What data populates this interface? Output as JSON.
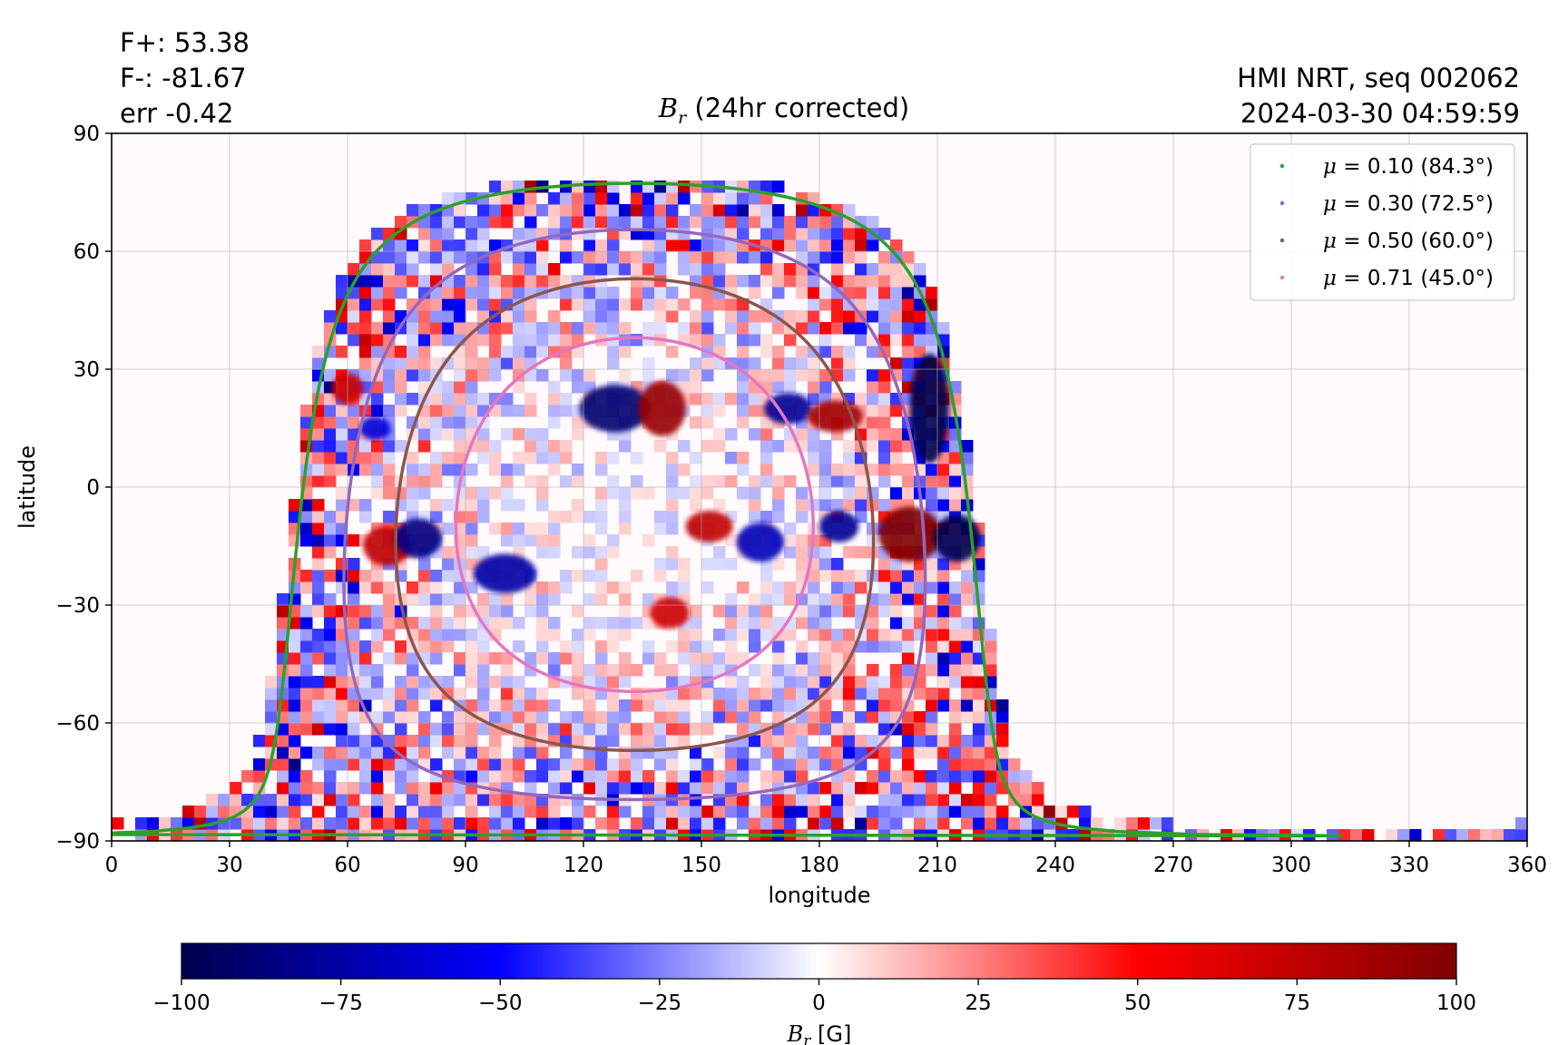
{
  "header": {
    "stats": [
      "F+: 53.38",
      "F-: -81.67",
      "err -0.42"
    ],
    "source": "HMI NRT, seq 002062",
    "timestamp": "2024-03-30 04:59:59",
    "title_symbol": "B",
    "title_subscript": "r",
    "title_rest": " (24hr corrected)"
  },
  "chart_data": {
    "type": "heatmap",
    "title": "B_r (24hr corrected)",
    "xlabel": "longitude",
    "ylabel": "latitude",
    "xlim": [
      0,
      360
    ],
    "ylim": [
      -90,
      90
    ],
    "xticks": [
      0,
      30,
      60,
      90,
      120,
      150,
      180,
      210,
      240,
      270,
      300,
      330,
      360
    ],
    "yticks": [
      90,
      60,
      30,
      0,
      -30,
      -60,
      -90
    ],
    "ytick_labels": [
      "90",
      "60",
      "30",
      "0",
      "−30",
      "−60",
      "−90"
    ],
    "grid": true,
    "legend_position": "top-right",
    "disk_center_lon": 133,
    "disk_center_lat": -7,
    "contours": [
      {
        "label": "μ = 0.10 (84.3°)",
        "mu_text": "μ",
        "rest_text": " = 0.10 (84.3°)",
        "angle_deg": 84.3,
        "color": "#2ca02c"
      },
      {
        "label": "μ = 0.30 (72.5°)",
        "mu_text": "μ",
        "rest_text": " = 0.30 (72.5°)",
        "angle_deg": 72.5,
        "color": "#9467bd"
      },
      {
        "label": "μ = 0.50 (60.0°)",
        "mu_text": "μ",
        "rest_text": " = 0.50 (60.0°)",
        "angle_deg": 60.0,
        "color": "#8c564b"
      },
      {
        "label": "μ = 0.71 (45.0°)",
        "mu_text": "μ",
        "rest_text": " = 0.71 (45.0°)",
        "angle_deg": 45.0,
        "color": "#e377c2"
      }
    ],
    "regions": [
      {
        "lon": 128,
        "lat": 20,
        "rx": 9,
        "ry": 6,
        "value": -90
      },
      {
        "lon": 140,
        "lat": 20,
        "rx": 6,
        "ry": 7,
        "value": 90
      },
      {
        "lon": 172,
        "lat": 20,
        "rx": 6,
        "ry": 4,
        "value": -80
      },
      {
        "lon": 184,
        "lat": 18,
        "rx": 7,
        "ry": 4,
        "value": 85
      },
      {
        "lon": 208,
        "lat": 20,
        "rx": 5,
        "ry": 14,
        "value": -100
      },
      {
        "lon": 203,
        "lat": -12,
        "rx": 8,
        "ry": 7,
        "value": 100
      },
      {
        "lon": 215,
        "lat": -13,
        "rx": 6,
        "ry": 6,
        "value": -100
      },
      {
        "lon": 100,
        "lat": -22,
        "rx": 8,
        "ry": 5,
        "value": -75
      },
      {
        "lon": 152,
        "lat": -10,
        "rx": 6,
        "ry": 4,
        "value": 75
      },
      {
        "lon": 165,
        "lat": -14,
        "rx": 6,
        "ry": 5,
        "value": -70
      },
      {
        "lon": 70,
        "lat": -15,
        "rx": 6,
        "ry": 5,
        "value": 75
      },
      {
        "lon": 78,
        "lat": -13,
        "rx": 6,
        "ry": 5,
        "value": -85
      },
      {
        "lon": 60,
        "lat": 25,
        "rx": 4,
        "ry": 4,
        "value": 70
      },
      {
        "lon": 67,
        "lat": 15,
        "rx": 4,
        "ry": 3,
        "value": -60
      },
      {
        "lon": 142,
        "lat": -32,
        "rx": 5,
        "ry": 4,
        "value": 70
      },
      {
        "lon": 185,
        "lat": -10,
        "rx": 5,
        "ry": 4,
        "value": -80
      }
    ],
    "colorbar": {
      "label_symbol": "B",
      "label_subscript": "r",
      "label_unit": " [G]",
      "min": -100,
      "max": 100,
      "ticks": [
        -100,
        -75,
        -50,
        -25,
        0,
        25,
        50,
        75,
        100
      ],
      "tick_labels": [
        "−100",
        "−75",
        "−50",
        "−25",
        "0",
        "25",
        "50",
        "75",
        "100"
      ],
      "colormap": "seismic",
      "colors": [
        "#00004d",
        "#0000ff",
        "#ffffff",
        "#ff0000",
        "#800000"
      ]
    }
  }
}
